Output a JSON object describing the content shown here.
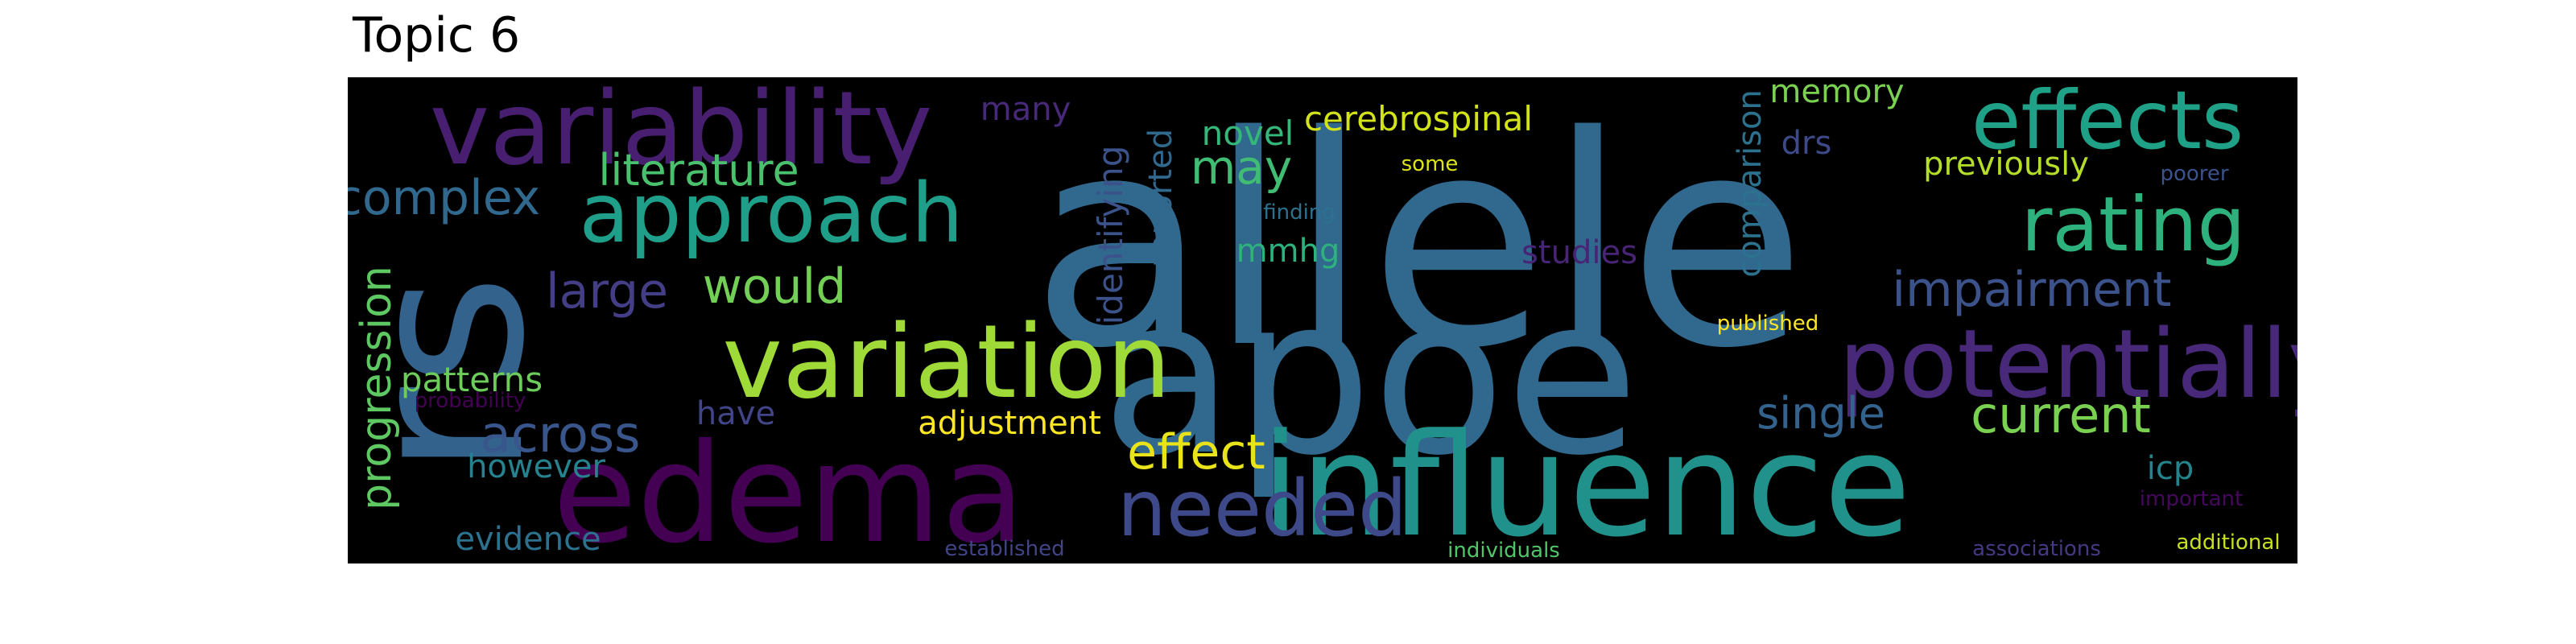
{
  "title": "Topic 6",
  "words": [
    {
      "text": "allele",
      "color": "#31688e"
    },
    {
      "text": "apoe",
      "color": "#31688e"
    },
    {
      "text": "rs",
      "color": "#33638d"
    },
    {
      "text": "influence",
      "color": "#21918c"
    },
    {
      "text": "edema",
      "color": "#440154"
    },
    {
      "text": "variability",
      "color": "#481f70"
    },
    {
      "text": "variation",
      "color": "#a0da39"
    },
    {
      "text": "potentially",
      "color": "#482878"
    },
    {
      "text": "effects",
      "color": "#1fa187"
    },
    {
      "text": "approach",
      "color": "#1f9e89"
    },
    {
      "text": "rating",
      "color": "#2db27d"
    },
    {
      "text": "needed",
      "color": "#3e4989"
    },
    {
      "text": "impairment",
      "color": "#3b528b"
    },
    {
      "text": "complex",
      "color": "#31688e"
    },
    {
      "text": "literature",
      "color": "#4ac16d"
    },
    {
      "text": "large",
      "color": "#433e85"
    },
    {
      "text": "would",
      "color": "#73d056"
    },
    {
      "text": "across",
      "color": "#39568c"
    },
    {
      "text": "current",
      "color": "#7ad151"
    },
    {
      "text": "effect",
      "color": "#e8e419"
    },
    {
      "text": "single",
      "color": "#33638d"
    },
    {
      "text": "may",
      "color": "#40bd72"
    },
    {
      "text": "progression",
      "color": "#5ec962"
    },
    {
      "text": "patterns",
      "color": "#6ccd5a"
    },
    {
      "text": "however",
      "color": "#26828e"
    },
    {
      "text": "evidence",
      "color": "#2c728e"
    },
    {
      "text": "adjustment",
      "color": "#fde725"
    },
    {
      "text": "have",
      "color": "#414487"
    },
    {
      "text": "identifying",
      "color": "#3b528b"
    },
    {
      "text": "reported",
      "color": "#31688e"
    },
    {
      "text": "comparison",
      "color": "#2c728e"
    },
    {
      "text": "novel",
      "color": "#35b779"
    },
    {
      "text": "cerebrospinal",
      "color": "#d2e21b"
    },
    {
      "text": "mmhg",
      "color": "#2db27d"
    },
    {
      "text": "memory",
      "color": "#7ad151"
    },
    {
      "text": "drs",
      "color": "#3e4989"
    },
    {
      "text": "previously",
      "color": "#b5de2b"
    },
    {
      "text": "studies",
      "color": "#482475"
    },
    {
      "text": "icp",
      "color": "#25838e"
    },
    {
      "text": "many",
      "color": "#482878"
    },
    {
      "text": "finding",
      "color": "#2c728e"
    },
    {
      "text": "some",
      "color": "#dde318"
    },
    {
      "text": "published",
      "color": "#fde725"
    },
    {
      "text": "poorer",
      "color": "#3b528b"
    },
    {
      "text": "probability",
      "color": "#440154"
    },
    {
      "text": "established",
      "color": "#414487"
    },
    {
      "text": "individuals",
      "color": "#52c569"
    },
    {
      "text": "associations",
      "color": "#443983"
    },
    {
      "text": "important",
      "color": "#46085c"
    },
    {
      "text": "additional",
      "color": "#c8e020"
    }
  ]
}
